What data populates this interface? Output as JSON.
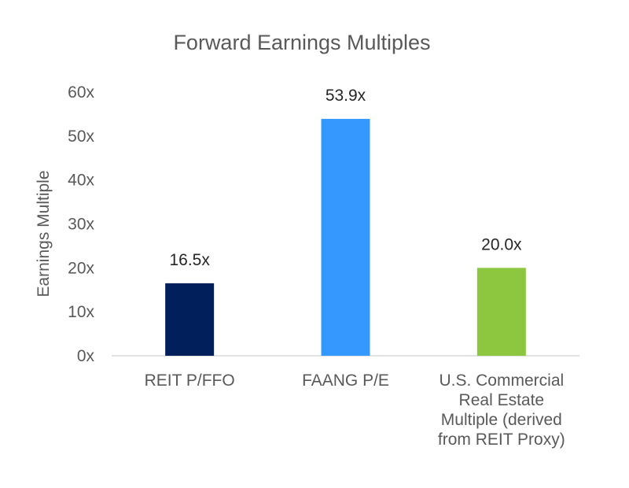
{
  "chart_data": {
    "type": "bar",
    "title": "Forward Earnings Multiples",
    "xlabel": "",
    "ylabel": "Earnings Multiple",
    "ylim": [
      0,
      60
    ],
    "ytick_step": 10,
    "ytick_suffix": "x",
    "grid": false,
    "legend": "none",
    "categories": [
      [
        "REIT P/FFO"
      ],
      [
        "FAANG P/E"
      ],
      [
        "U.S. Commercial",
        "Real Estate",
        "Multiple (derived",
        "from REIT Proxy)"
      ]
    ],
    "values": [
      16.5,
      53.9,
      20.0
    ],
    "data_labels": [
      "16.5x",
      "53.9x",
      "20.0x"
    ],
    "colors": [
      "#001f5b",
      "#3399ff",
      "#8dc63f"
    ]
  }
}
